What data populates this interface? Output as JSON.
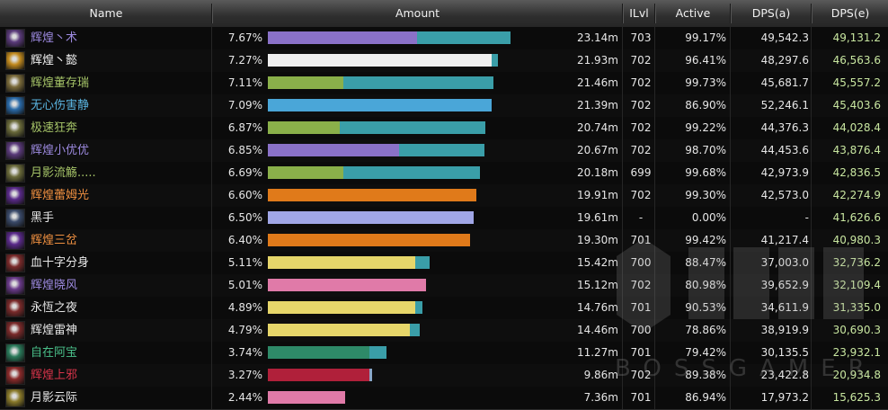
{
  "columns": {
    "name": "Name",
    "amount": "Amount",
    "ilvl": "ILvl",
    "active": "Active",
    "dps_a": "DPS(a)",
    "dps_e": "DPS(e)"
  },
  "watermark": {
    "text": "BOSSGAMER"
  },
  "rows": [
    {
      "name": "辉煌丶术",
      "name_color": "#9d8ae0",
      "icon": "warlock-class-icon",
      "icon_color": "#5a3a7a",
      "pct": "7.67%",
      "bar_primary_fraction": 0.614,
      "bar_primary_color": "#8a71c8",
      "bar_total_fraction": 1.0,
      "bar_secondary_color": "#3a9ea8",
      "amount": "23.14m",
      "ilvl": "703",
      "active": "99.17%",
      "dps_a": "49,542.3",
      "dps_e": "49,131.2"
    },
    {
      "name": "辉煌丶懿",
      "name_color": "#f2f2f2",
      "icon": "priest-class-icon",
      "icon_color": "#c28a1e",
      "pct": "7.27%",
      "bar_primary_fraction": 0.922,
      "bar_primary_color": "#eeeeee",
      "bar_total_fraction": 0.948,
      "bar_secondary_color": "#3a9ea8",
      "amount": "21.93m",
      "ilvl": "702",
      "active": "96.41%",
      "dps_a": "48,297.6",
      "dps_e": "46,563.6"
    },
    {
      "name": "辉煌董存瑞",
      "name_color": "#a6c468",
      "icon": "hunter-class-icon",
      "icon_color": "#7a6a3a",
      "pct": "7.11%",
      "bar_primary_fraction": 0.31,
      "bar_primary_color": "#8ab04a",
      "bar_total_fraction": 0.928,
      "bar_secondary_color": "#3a9ea8",
      "amount": "21.46m",
      "ilvl": "702",
      "active": "99.73%",
      "dps_a": "45,681.7",
      "dps_e": "45,557.2"
    },
    {
      "name": "无心伤害静",
      "name_color": "#5ab4e0",
      "icon": "shaman-class-icon",
      "icon_color": "#2a6aa8",
      "pct": "7.09%",
      "bar_primary_fraction": 0.924,
      "bar_primary_color": "#4aa6d8",
      "bar_total_fraction": 0.924,
      "bar_secondary_color": "#3a9ea8",
      "amount": "21.39m",
      "ilvl": "702",
      "active": "86.90%",
      "dps_a": "52,246.1",
      "dps_e": "45,403.6"
    },
    {
      "name": "极速狂奔",
      "name_color": "#a6c468",
      "icon": "hunter-class-icon",
      "icon_color": "#6a6a3a",
      "pct": "6.87%",
      "bar_primary_fraction": 0.296,
      "bar_primary_color": "#8ab04a",
      "bar_total_fraction": 0.896,
      "bar_secondary_color": "#3a9ea8",
      "amount": "20.74m",
      "ilvl": "702",
      "active": "99.22%",
      "dps_a": "44,376.3",
      "dps_e": "44,028.4"
    },
    {
      "name": "辉煌小优优",
      "name_color": "#9d8ae0",
      "icon": "warlock-class-icon",
      "icon_color": "#5a3a7a",
      "pct": "6.85%",
      "bar_primary_fraction": 0.541,
      "bar_primary_color": "#8a71c8",
      "bar_total_fraction": 0.893,
      "bar_secondary_color": "#3a9ea8",
      "amount": "20.67m",
      "ilvl": "702",
      "active": "98.70%",
      "dps_a": "44,453.6",
      "dps_e": "43,876.4"
    },
    {
      "name": "月影流觞.....",
      "name_color": "#a6c468",
      "icon": "hunter-class-icon",
      "icon_color": "#6a6a3a",
      "pct": "6.69%",
      "bar_primary_fraction": 0.311,
      "bar_primary_color": "#8ab04a",
      "bar_total_fraction": 0.874,
      "bar_secondary_color": "#3a9ea8",
      "amount": "20.18m",
      "ilvl": "699",
      "active": "99.68%",
      "dps_a": "42,973.9",
      "dps_e": "42,836.5"
    },
    {
      "name": "辉煌蕾姆光",
      "name_color": "#f09040",
      "icon": "mage-class-icon",
      "icon_color": "#5a2a8a",
      "pct": "6.60%",
      "bar_primary_fraction": 0.86,
      "bar_primary_color": "#e07a1a",
      "bar_total_fraction": 0.86,
      "bar_secondary_color": "#3a9ea8",
      "amount": "19.91m",
      "ilvl": "702",
      "active": "99.30%",
      "dps_a": "42,573.0",
      "dps_e": "42,274.9"
    },
    {
      "name": "黑手",
      "name_color": "#e6e6e6",
      "icon": "boss-icon",
      "icon_color": "#3a4a6a",
      "pct": "6.50%",
      "bar_primary_fraction": 0.848,
      "bar_primary_color": "#a0a6e6",
      "bar_total_fraction": 0.848,
      "bar_secondary_color": "#3a9ea8",
      "amount": "19.61m",
      "ilvl": "-",
      "active": "0.00%",
      "dps_a": "-",
      "dps_e": "41,626.6"
    },
    {
      "name": "辉煌三岔",
      "name_color": "#f09040",
      "icon": "mage-class-icon",
      "icon_color": "#5a2a8a",
      "pct": "6.40%",
      "bar_primary_fraction": 0.833,
      "bar_primary_color": "#e07a1a",
      "bar_total_fraction": 0.833,
      "bar_secondary_color": "#3a9ea8",
      "amount": "19.30m",
      "ilvl": "701",
      "active": "99.42%",
      "dps_a": "41,217.4",
      "dps_e": "40,980.3"
    },
    {
      "name": "血十字分身",
      "name_color": "#e6e6e6",
      "icon": "warrior-class-icon",
      "icon_color": "#7a2a2a",
      "pct": "5.11%",
      "bar_primary_fraction": 0.607,
      "bar_primary_color": "#e6d66a",
      "bar_total_fraction": 0.666,
      "bar_secondary_color": "#3a9ea8",
      "amount": "15.42m",
      "ilvl": "700",
      "active": "88.47%",
      "dps_a": "37,003.0",
      "dps_e": "32,736.2"
    },
    {
      "name": "辉煌晓风",
      "name_color": "#9d8ae0",
      "icon": "warlock-class-icon",
      "icon_color": "#6a3a8a",
      "pct": "5.01%",
      "bar_primary_fraction": 0.653,
      "bar_primary_color": "#e07aa8",
      "bar_total_fraction": 0.653,
      "bar_secondary_color": "#3a9ea8",
      "amount": "15.12m",
      "ilvl": "702",
      "active": "80.98%",
      "dps_a": "39,652.9",
      "dps_e": "32,109.4"
    },
    {
      "name": "永恆之夜",
      "name_color": "#e6e6e6",
      "icon": "warrior-class-icon",
      "icon_color": "#7a2a2a",
      "pct": "4.89%",
      "bar_primary_fraction": 0.607,
      "bar_primary_color": "#e6d66a",
      "bar_total_fraction": 0.637,
      "bar_secondary_color": "#3a9ea8",
      "amount": "14.76m",
      "ilvl": "701",
      "active": "90.53%",
      "dps_a": "34,611.9",
      "dps_e": "31,335.0"
    },
    {
      "name": "辉煌雷神",
      "name_color": "#e6e6e6",
      "icon": "warrior-class-icon",
      "icon_color": "#7a2a2a",
      "pct": "4.79%",
      "bar_primary_fraction": 0.585,
      "bar_primary_color": "#e6d66a",
      "bar_total_fraction": 0.625,
      "bar_secondary_color": "#3a9ea8",
      "amount": "14.46m",
      "ilvl": "700",
      "active": "78.86%",
      "dps_a": "38,919.9",
      "dps_e": "30,690.3"
    },
    {
      "name": "自在阿宝",
      "name_color": "#4ac08a",
      "icon": "monk-class-icon",
      "icon_color": "#2a7a5a",
      "pct": "3.74%",
      "bar_primary_fraction": 0.419,
      "bar_primary_color": "#2e8a68",
      "bar_total_fraction": 0.489,
      "bar_secondary_color": "#3a9ea8",
      "amount": "11.27m",
      "ilvl": "701",
      "active": "79.42%",
      "dps_a": "30,135.5",
      "dps_e": "23,932.1"
    },
    {
      "name": "辉煌上邪",
      "name_color": "#d8344a",
      "icon": "deathknight-class-icon",
      "icon_color": "#8a2a2a",
      "pct": "3.27%",
      "bar_primary_fraction": 0.419,
      "bar_primary_color": "#b0203a",
      "bar_total_fraction": 0.43,
      "bar_secondary_color": "#8aa6c8",
      "amount": "9.86m",
      "ilvl": "702",
      "active": "89.38%",
      "dps_a": "23,422.8",
      "dps_e": "20,934.8"
    },
    {
      "name": "月影云际",
      "name_color": "#e6e6e6",
      "icon": "paladin-class-icon",
      "icon_color": "#8a7a2a",
      "pct": "2.44%",
      "bar_primary_fraction": 0.318,
      "bar_primary_color": "#e07aa8",
      "bar_total_fraction": 0.318,
      "bar_secondary_color": "#3a9ea8",
      "amount": "7.36m",
      "ilvl": "701",
      "active": "86.94%",
      "dps_a": "17,973.2",
      "dps_e": "15,625.3"
    }
  ]
}
